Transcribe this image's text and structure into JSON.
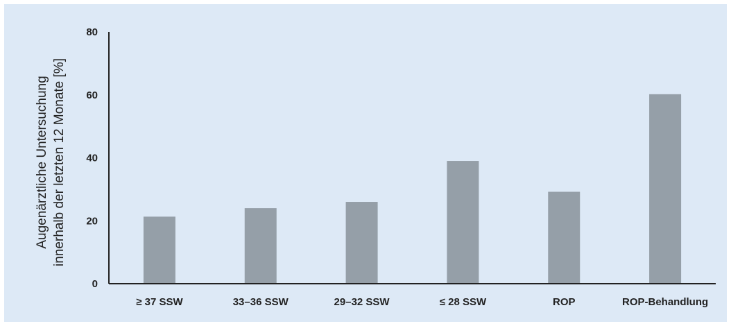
{
  "chart_data": {
    "type": "bar",
    "title": "",
    "ylabel_lines": [
      "Augenärztliche Untersuchung",
      "innerhalb der letzten 12 Monate  [%]"
    ],
    "xlabel": "",
    "categories": [
      "≥ 37 SSW",
      "33–36 SSW",
      "29–32 SSW",
      "≤ 28 SSW",
      "ROP",
      "ROP-Behandlung"
    ],
    "values": [
      21.3,
      24,
      26,
      39,
      29.2,
      60.2
    ],
    "ylim": [
      0,
      80
    ],
    "yticks": [
      0,
      20,
      40,
      60,
      80
    ],
    "grid": false,
    "legend": "none",
    "colors": {
      "bar": "#959fa8",
      "background": "#dde9f6",
      "axis": "#222222"
    }
  }
}
